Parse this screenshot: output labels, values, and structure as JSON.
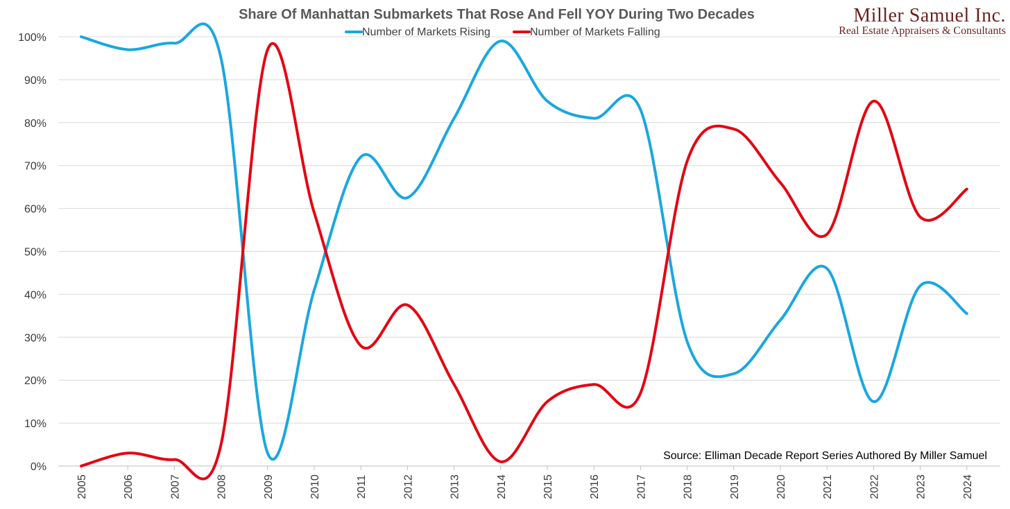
{
  "logo": {
    "name": "Miller Samuel Inc.",
    "tagline": "Real Estate Appraisers & Consultants",
    "color": "#6b1f1f"
  },
  "chart_data": {
    "type": "line",
    "title": "Share Of Manhattan Submarkets That Rose And Fell YOY During Two Decades",
    "xlabel": "",
    "ylabel": "",
    "ylim": [
      0,
      100
    ],
    "yticks": [
      "0%",
      "10%",
      "20%",
      "30%",
      "40%",
      "50%",
      "60%",
      "70%",
      "80%",
      "90%",
      "100%"
    ],
    "x": [
      "2005",
      "2006",
      "2007",
      "2008",
      "2009",
      "2010",
      "2011",
      "2012",
      "2013",
      "2014",
      "2015",
      "2016",
      "2017",
      "2018",
      "2019",
      "2020",
      "2021",
      "2022",
      "2023",
      "2024"
    ],
    "grid": true,
    "legend_position": "top-center",
    "series": [
      {
        "name": "Number of Markets Rising",
        "color": "#1aa7e0",
        "values": [
          100,
          97,
          98.5,
          95,
          3,
          41,
          72,
          62.5,
          81,
          99,
          85,
          81,
          83,
          29,
          21.5,
          34,
          46,
          15,
          42,
          35.5
        ]
      },
      {
        "name": "Number of Markets Falling",
        "color": "#e30613",
        "values": [
          0,
          3,
          1.5,
          5,
          97,
          59,
          28,
          37.5,
          19,
          1,
          15,
          19,
          17,
          71,
          78.5,
          66,
          54,
          85,
          58,
          64.5
        ]
      }
    ],
    "annotation": "Source: Elliman Decade Report Series Authored By Miller Samuel"
  }
}
